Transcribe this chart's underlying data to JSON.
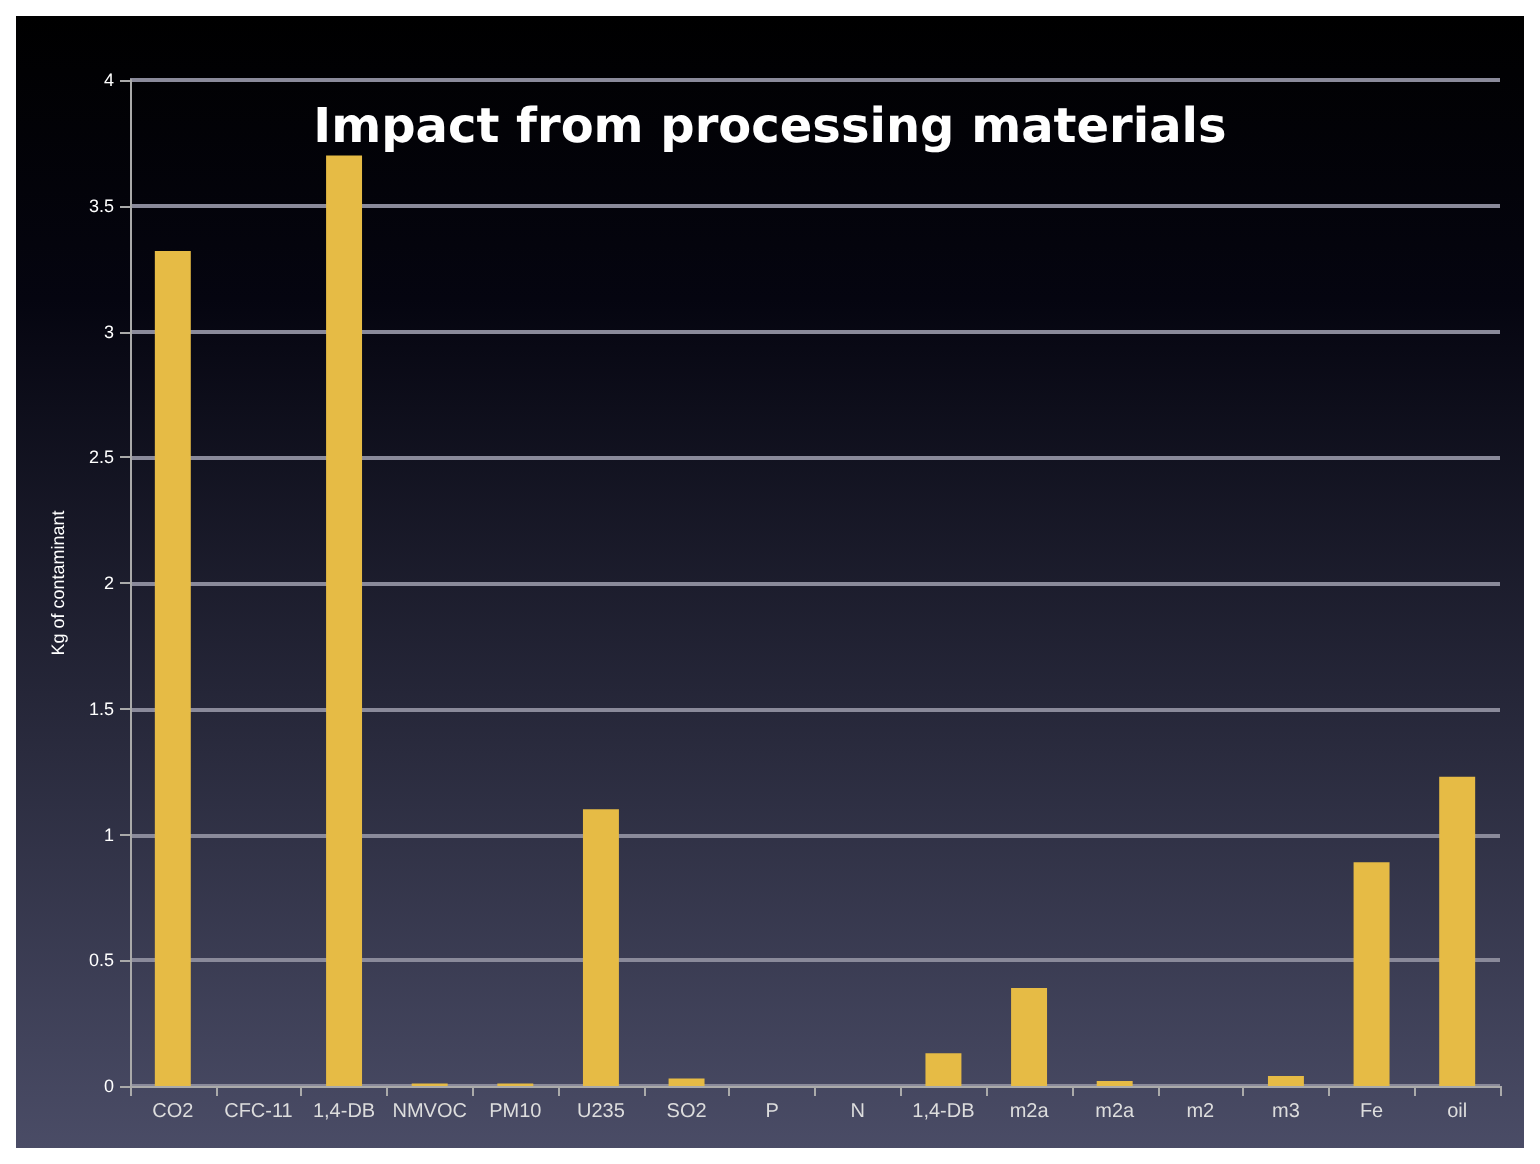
{
  "chart_data": {
    "type": "bar",
    "title": "Impact from processing materials",
    "ylabel": "Kg of contaminant",
    "categories": [
      "CO2",
      "CFC-11",
      "1,4-DB",
      "NMVOC",
      "PM10",
      "U235",
      "SO2",
      "P",
      "N",
      "1,4-DB",
      "m2a",
      "m2a",
      "m2",
      "m3",
      "Fe",
      "oil"
    ],
    "values": [
      3.32,
      0,
      3.7,
      0.01,
      0.01,
      1.1,
      0.03,
      0,
      0,
      0.13,
      0.39,
      0.02,
      0,
      0.04,
      0.89,
      1.23
    ],
    "color": "#e6bb45",
    "ylim": [
      0,
      4
    ],
    "yticks": [
      0,
      0.5,
      1,
      1.5,
      2,
      2.5,
      3,
      3.5,
      4
    ],
    "grid": "y"
  }
}
